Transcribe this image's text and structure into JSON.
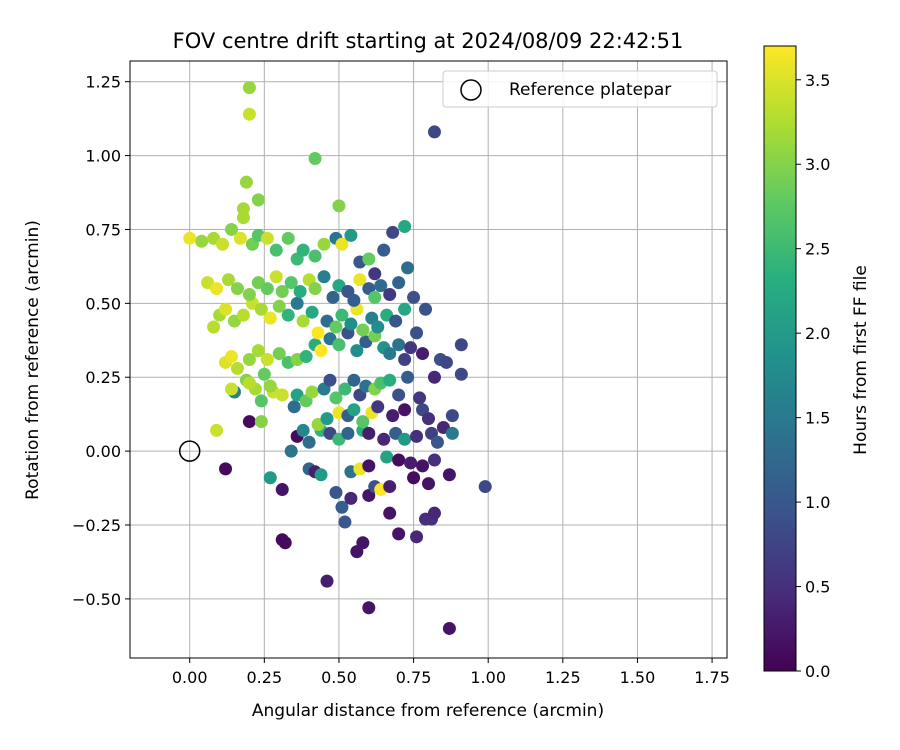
{
  "chart_data": {
    "type": "scatter",
    "title": "FOV centre drift starting at 2024/08/09 22:42:51",
    "xlabel": "Angular distance from reference (arcmin)",
    "ylabel": "Rotation from reference (arcmin)",
    "xlim": [
      -0.2,
      1.8
    ],
    "ylim": [
      -0.7,
      1.32
    ],
    "xticks": [
      0.0,
      0.25,
      0.5,
      0.75,
      1.0,
      1.25,
      1.5,
      1.75
    ],
    "xtick_labels": [
      "0.00",
      "0.25",
      "0.50",
      "0.75",
      "1.00",
      "1.25",
      "1.50",
      "1.75"
    ],
    "yticks": [
      -0.5,
      -0.25,
      0.0,
      0.25,
      0.5,
      0.75,
      1.0,
      1.25
    ],
    "ytick_labels": [
      "−0.50",
      "−0.25",
      "0.00",
      "0.25",
      "0.50",
      "0.75",
      "1.00",
      "1.25"
    ],
    "grid": true,
    "legend": {
      "placement": "top-right",
      "entries": [
        "Reference platepar"
      ]
    },
    "reference": {
      "x": 0.0,
      "y": 0.0,
      "label": "Reference platepar"
    },
    "colorbar": {
      "label": "Hours from first FF file",
      "colormap": "viridis",
      "min": 0.0,
      "max": 3.7,
      "ticks": [
        0.0,
        0.5,
        1.0,
        1.5,
        2.0,
        2.5,
        3.0,
        3.5
      ],
      "tick_labels": [
        "0.0",
        "0.5",
        "1.0",
        "1.5",
        "2.0",
        "2.5",
        "3.0",
        "3.5"
      ]
    },
    "points": [
      [
        0.82,
        1.08,
        0.8
      ],
      [
        0.99,
        -0.12,
        0.8
      ],
      [
        0.87,
        -0.6,
        0.2
      ],
      [
        0.6,
        -0.53,
        0.2
      ],
      [
        0.46,
        -0.44,
        0.3
      ],
      [
        0.56,
        -0.34,
        0.2
      ],
      [
        0.58,
        -0.31,
        0.2
      ],
      [
        0.31,
        -0.3,
        0.1
      ],
      [
        0.32,
        -0.31,
        0.1
      ],
      [
        0.7,
        -0.28,
        0.2
      ],
      [
        0.76,
        -0.29,
        0.4
      ],
      [
        0.79,
        -0.23,
        0.5
      ],
      [
        0.81,
        -0.23,
        0.5
      ],
      [
        0.82,
        -0.21,
        0.4
      ],
      [
        0.67,
        -0.21,
        0.2
      ],
      [
        0.52,
        -0.24,
        1.0
      ],
      [
        0.51,
        -0.19,
        1.1
      ],
      [
        0.49,
        -0.14,
        1.0
      ],
      [
        0.54,
        -0.16,
        0.4
      ],
      [
        0.6,
        -0.15,
        0.2
      ],
      [
        0.62,
        -0.12,
        0.9
      ],
      [
        0.64,
        -0.13,
        3.7
      ],
      [
        0.67,
        -0.12,
        0.3
      ],
      [
        0.75,
        -0.09,
        0.1
      ],
      [
        0.8,
        -0.11,
        0.2
      ],
      [
        0.87,
        -0.08,
        0.2
      ],
      [
        0.31,
        -0.13,
        0.2
      ],
      [
        0.27,
        -0.09,
        2.0
      ],
      [
        0.12,
        -0.06,
        0.1
      ],
      [
        0.4,
        -0.06,
        1.2
      ],
      [
        0.42,
        -0.07,
        0.3
      ],
      [
        0.44,
        -0.08,
        2.0
      ],
      [
        0.54,
        -0.07,
        1.4
      ],
      [
        0.57,
        -0.06,
        3.6
      ],
      [
        0.6,
        -0.05,
        0.2
      ],
      [
        0.66,
        -0.02,
        2.1
      ],
      [
        0.7,
        -0.03,
        0.1
      ],
      [
        0.74,
        -0.04,
        0.3
      ],
      [
        0.78,
        -0.05,
        0.2
      ],
      [
        0.82,
        -0.03,
        0.5
      ],
      [
        0.34,
        0.0,
        1.4
      ],
      [
        0.4,
        0.03,
        1.3
      ],
      [
        0.36,
        0.05,
        0.1
      ],
      [
        0.44,
        0.07,
        2.4
      ],
      [
        0.47,
        0.06,
        0.8
      ],
      [
        0.5,
        0.04,
        2.5
      ],
      [
        0.53,
        0.06,
        1.2
      ],
      [
        0.58,
        0.07,
        2.3
      ],
      [
        0.6,
        0.06,
        0.3
      ],
      [
        0.65,
        0.04,
        0.4
      ],
      [
        0.69,
        0.06,
        1.1
      ],
      [
        0.72,
        0.04,
        2.0
      ],
      [
        0.76,
        0.05,
        0.5
      ],
      [
        0.81,
        0.06,
        0.7
      ],
      [
        0.83,
        0.03,
        1.0
      ],
      [
        0.85,
        0.08,
        0.4
      ],
      [
        0.88,
        0.06,
        1.5
      ],
      [
        0.2,
        0.1,
        0.1
      ],
      [
        0.24,
        0.1,
        3.0
      ],
      [
        0.38,
        0.07,
        1.7
      ],
      [
        0.43,
        0.09,
        3.1
      ],
      [
        0.46,
        0.11,
        2.0
      ],
      [
        0.5,
        0.13,
        3.6
      ],
      [
        0.53,
        0.12,
        1.1
      ],
      [
        0.55,
        0.14,
        2.1
      ],
      [
        0.58,
        0.1,
        2.7
      ],
      [
        0.61,
        0.13,
        3.6
      ],
      [
        0.63,
        0.15,
        0.6
      ],
      [
        0.68,
        0.12,
        0.3
      ],
      [
        0.72,
        0.14,
        0.2
      ],
      [
        0.78,
        0.14,
        0.8
      ],
      [
        0.8,
        0.11,
        0.5
      ],
      [
        0.88,
        0.12,
        0.8
      ],
      [
        0.15,
        0.2,
        1.6
      ],
      [
        0.19,
        0.24,
        3.0
      ],
      [
        0.22,
        0.21,
        3.2
      ],
      [
        0.25,
        0.26,
        2.8
      ],
      [
        0.28,
        0.2,
        3.4
      ],
      [
        0.31,
        0.19,
        3.4
      ],
      [
        0.35,
        0.15,
        1.3
      ],
      [
        0.36,
        0.19,
        2.1
      ],
      [
        0.39,
        0.17,
        2.8
      ],
      [
        0.41,
        0.2,
        3.1
      ],
      [
        0.45,
        0.21,
        1.5
      ],
      [
        0.47,
        0.24,
        0.9
      ],
      [
        0.49,
        0.18,
        2.7
      ],
      [
        0.52,
        0.21,
        2.5
      ],
      [
        0.55,
        0.24,
        1.2
      ],
      [
        0.57,
        0.19,
        0.8
      ],
      [
        0.59,
        0.22,
        1.4
      ],
      [
        0.62,
        0.21,
        3.0
      ],
      [
        0.64,
        0.23,
        2.6
      ],
      [
        0.67,
        0.24,
        2.3
      ],
      [
        0.7,
        0.19,
        0.9
      ],
      [
        0.73,
        0.25,
        1.1
      ],
      [
        0.77,
        0.18,
        0.6
      ],
      [
        0.82,
        0.25,
        0.4
      ],
      [
        0.91,
        0.26,
        0.8
      ],
      [
        0.12,
        0.3,
        3.5
      ],
      [
        0.14,
        0.32,
        3.6
      ],
      [
        0.16,
        0.28,
        3.3
      ],
      [
        0.2,
        0.31,
        3.1
      ],
      [
        0.23,
        0.34,
        3.2
      ],
      [
        0.26,
        0.31,
        3.4
      ],
      [
        0.3,
        0.33,
        2.9
      ],
      [
        0.33,
        0.3,
        2.6
      ],
      [
        0.36,
        0.31,
        3.0
      ],
      [
        0.39,
        0.32,
        2.4
      ],
      [
        0.42,
        0.36,
        2.3
      ],
      [
        0.44,
        0.34,
        3.7
      ],
      [
        0.47,
        0.38,
        1.4
      ],
      [
        0.5,
        0.36,
        2.6
      ],
      [
        0.53,
        0.4,
        0.9
      ],
      [
        0.56,
        0.34,
        1.8
      ],
      [
        0.59,
        0.37,
        1.1
      ],
      [
        0.62,
        0.39,
        2.9
      ],
      [
        0.65,
        0.35,
        1.9
      ],
      [
        0.67,
        0.33,
        1.5
      ],
      [
        0.7,
        0.36,
        1.4
      ],
      [
        0.72,
        0.31,
        0.7
      ],
      [
        0.74,
        0.35,
        0.6
      ],
      [
        0.78,
        0.33,
        0.3
      ],
      [
        0.84,
        0.31,
        0.9
      ],
      [
        0.86,
        0.3,
        0.8
      ],
      [
        0.91,
        0.36,
        0.8
      ],
      [
        0.08,
        0.42,
        3.3
      ],
      [
        0.1,
        0.46,
        3.2
      ],
      [
        0.12,
        0.48,
        3.5
      ],
      [
        0.15,
        0.44,
        3.1
      ],
      [
        0.18,
        0.46,
        3.3
      ],
      [
        0.21,
        0.5,
        3.4
      ],
      [
        0.24,
        0.48,
        3.2
      ],
      [
        0.27,
        0.45,
        3.6
      ],
      [
        0.3,
        0.49,
        3.0
      ],
      [
        0.33,
        0.46,
        2.4
      ],
      [
        0.36,
        0.5,
        1.5
      ],
      [
        0.38,
        0.44,
        3.2
      ],
      [
        0.41,
        0.47,
        2.2
      ],
      [
        0.43,
        0.4,
        3.7
      ],
      [
        0.46,
        0.44,
        1.3
      ],
      [
        0.49,
        0.42,
        2.8
      ],
      [
        0.51,
        0.46,
        2.5
      ],
      [
        0.54,
        0.43,
        1.8
      ],
      [
        0.56,
        0.48,
        3.6
      ],
      [
        0.58,
        0.41,
        2.9
      ],
      [
        0.61,
        0.45,
        1.6
      ],
      [
        0.63,
        0.42,
        1.8
      ],
      [
        0.66,
        0.46,
        2.3
      ],
      [
        0.69,
        0.44,
        1.0
      ],
      [
        0.72,
        0.48,
        2.2
      ],
      [
        0.76,
        0.4,
        0.9
      ],
      [
        0.79,
        0.48,
        0.9
      ],
      [
        0.06,
        0.57,
        3.4
      ],
      [
        0.09,
        0.55,
        3.6
      ],
      [
        0.13,
        0.58,
        3.2
      ],
      [
        0.16,
        0.55,
        3.0
      ],
      [
        0.2,
        0.53,
        3.0
      ],
      [
        0.23,
        0.57,
        2.9
      ],
      [
        0.26,
        0.55,
        2.8
      ],
      [
        0.29,
        0.59,
        3.4
      ],
      [
        0.31,
        0.54,
        2.9
      ],
      [
        0.34,
        0.57,
        2.7
      ],
      [
        0.37,
        0.54,
        2.3
      ],
      [
        0.4,
        0.58,
        3.3
      ],
      [
        0.42,
        0.55,
        3.0
      ],
      [
        0.45,
        0.59,
        1.6
      ],
      [
        0.48,
        0.52,
        1.2
      ],
      [
        0.5,
        0.56,
        2.2
      ],
      [
        0.53,
        0.54,
        1.0
      ],
      [
        0.55,
        0.51,
        1.1
      ],
      [
        0.57,
        0.58,
        3.6
      ],
      [
        0.6,
        0.55,
        1.1
      ],
      [
        0.62,
        0.52,
        2.7
      ],
      [
        0.64,
        0.56,
        1.3
      ],
      [
        0.67,
        0.53,
        0.6
      ],
      [
        0.7,
        0.57,
        1.2
      ],
      [
        0.73,
        0.62,
        1.3
      ],
      [
        0.75,
        0.52,
        0.9
      ],
      [
        0.04,
        0.71,
        3.1
      ],
      [
        0.08,
        0.72,
        3.2
      ],
      [
        0.11,
        0.7,
        3.4
      ],
      [
        0.14,
        0.75,
        3.0
      ],
      [
        0.17,
        0.72,
        3.5
      ],
      [
        0.21,
        0.7,
        2.9
      ],
      [
        0.23,
        0.73,
        2.7
      ],
      [
        0.26,
        0.72,
        3.4
      ],
      [
        0.29,
        0.68,
        2.6
      ],
      [
        0.33,
        0.72,
        2.8
      ],
      [
        0.36,
        0.65,
        2.5
      ],
      [
        0.38,
        0.68,
        2.4
      ],
      [
        0.42,
        0.66,
        2.6
      ],
      [
        0.45,
        0.7,
        3.1
      ],
      [
        0.49,
        0.72,
        1.4
      ],
      [
        0.51,
        0.7,
        3.6
      ],
      [
        0.54,
        0.73,
        2.0
      ],
      [
        0.57,
        0.64,
        1.0
      ],
      [
        0.6,
        0.65,
        2.8
      ],
      [
        0.62,
        0.6,
        0.6
      ],
      [
        0.65,
        0.68,
        1.1
      ],
      [
        0.68,
        0.74,
        0.8
      ],
      [
        0.72,
        0.76,
        2.2
      ],
      [
        0.19,
        0.91,
        3.1
      ],
      [
        0.18,
        0.82,
        3.2
      ],
      [
        0.18,
        0.79,
        3.2
      ],
      [
        0.23,
        0.85,
        3.0
      ],
      [
        0.42,
        0.99,
        2.8
      ],
      [
        0.5,
        0.83,
        3.0
      ],
      [
        0.2,
        1.23,
        3.1
      ],
      [
        0.2,
        1.14,
        3.4
      ],
      [
        0.0,
        0.72,
        3.6
      ],
      [
        0.09,
        0.07,
        3.4
      ],
      [
        0.14,
        0.21,
        3.4
      ],
      [
        0.2,
        0.23,
        3.3
      ],
      [
        0.24,
        0.17,
        2.7
      ],
      [
        0.27,
        0.22,
        3.1
      ]
    ]
  }
}
